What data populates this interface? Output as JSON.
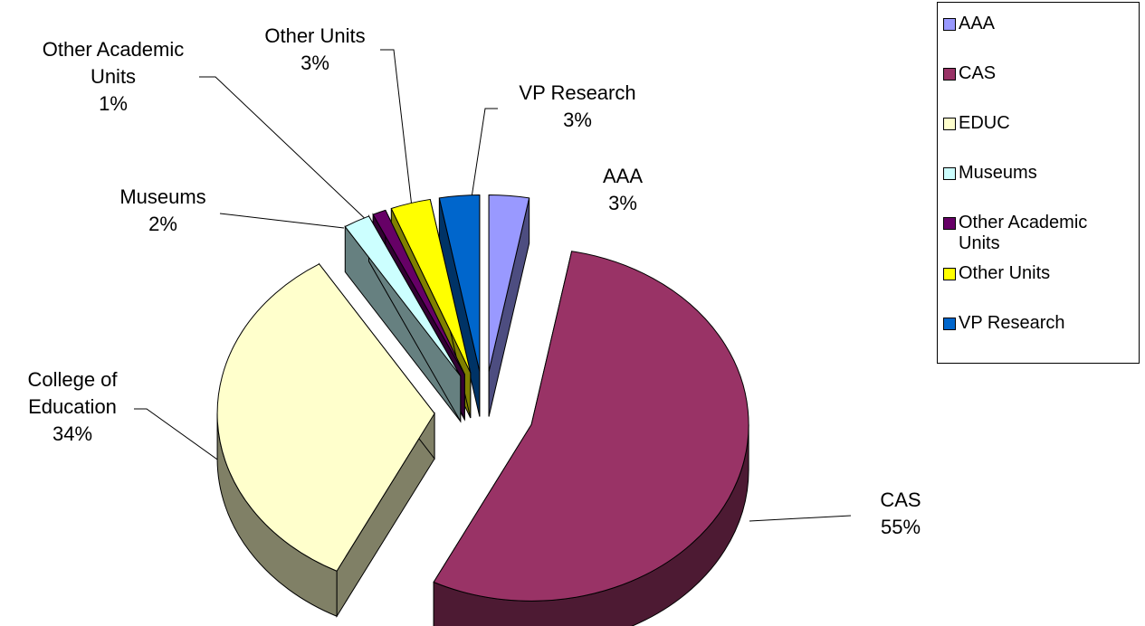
{
  "chart_data": {
    "type": "pie3d",
    "categories": [
      "AAA",
      "CAS",
      "EDUC",
      "Museums",
      "Other Academic Units",
      "Other Units",
      "VP Research"
    ],
    "label_names": [
      "AAA",
      "CAS",
      "College of Education",
      "Museums",
      "Other Academic Units",
      "Other Units",
      "VP Research"
    ],
    "values": [
      3,
      55,
      34,
      2,
      1,
      3,
      3
    ],
    "value_labels": [
      "3%",
      "55%",
      "34%",
      "2%",
      "1%",
      "3%",
      "3%"
    ],
    "colors": [
      "#9999ff",
      "#993366",
      "#ffffcc",
      "#ccffff",
      "#660066",
      "#ffff00",
      "#0066cc"
    ],
    "legend": "right"
  }
}
